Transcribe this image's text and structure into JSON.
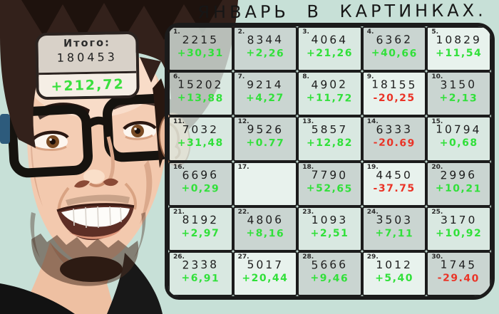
{
  "title": "ЯНВАРЬ В КАРТИНКАХ.",
  "total_box": {
    "label": "Итого:",
    "total": "180453",
    "change": "+212,72"
  },
  "colors": {
    "background": "#c7e0d7",
    "grid_border": "#1b1b1b",
    "positive": "#31e03a",
    "negative": "#ea3326",
    "cell_light": "#deeae4",
    "cell_gray": "#cbd3cf",
    "cell_white": "#edf5f0"
  },
  "chart_data": {
    "type": "table",
    "title": "ЯНВАРЬ В КАРТИНКАХ.",
    "columns": [
      "day",
      "value",
      "change"
    ],
    "total": {
      "label": "Итого:",
      "value": 180453,
      "change": "+212,72"
    },
    "days": [
      {
        "day": 1,
        "value": "2215",
        "change": "+30,31",
        "trend": "up",
        "shade": "light"
      },
      {
        "day": 2,
        "value": "8344",
        "change": "+2,26",
        "trend": "up",
        "shade": "gray"
      },
      {
        "day": 3,
        "value": "4064",
        "change": "+21,26",
        "trend": "up",
        "shade": "light"
      },
      {
        "day": 4,
        "value": "6362",
        "change": "+40,66",
        "trend": "up",
        "shade": "gray"
      },
      {
        "day": 5,
        "value": "10829",
        "change": "+11,54",
        "trend": "up",
        "shade": "white"
      },
      {
        "day": 6,
        "value": "15202",
        "change": "+13,88",
        "trend": "up",
        "shade": "light"
      },
      {
        "day": 7,
        "value": "9214",
        "change": "+4,27",
        "trend": "up",
        "shade": "gray"
      },
      {
        "day": 8,
        "value": "4902",
        "change": "+11,72",
        "trend": "up",
        "shade": "light"
      },
      {
        "day": 9,
        "value": "18155",
        "change": "-20,25",
        "trend": "down",
        "shade": "white"
      },
      {
        "day": 10,
        "value": "3150",
        "change": "+2,13",
        "trend": "up",
        "shade": "gray"
      },
      {
        "day": 11,
        "value": "7032",
        "change": "+31,48",
        "trend": "up",
        "shade": "light"
      },
      {
        "day": 12,
        "value": "9526",
        "change": "+0.77",
        "trend": "up",
        "shade": "gray"
      },
      {
        "day": 13,
        "value": "5857",
        "change": "+12,82",
        "trend": "up",
        "shade": "light"
      },
      {
        "day": 14,
        "value": "6333",
        "change": "-20.69",
        "trend": "down",
        "shade": "gray"
      },
      {
        "day": 15,
        "value": "10794",
        "change": "+0,68",
        "trend": "up",
        "shade": "light"
      },
      {
        "day": 16,
        "value": "6696",
        "change": "+0,29",
        "trend": "up",
        "shade": "gray"
      },
      {
        "day": 17,
        "value": "",
        "change": "",
        "trend": "none",
        "shade": "white"
      },
      {
        "day": 18,
        "value": "7790",
        "change": "+52,65",
        "trend": "up",
        "shade": "gray"
      },
      {
        "day": 19,
        "value": "4450",
        "change": "-37.75",
        "trend": "down",
        "shade": "white"
      },
      {
        "day": 20,
        "value": "2996",
        "change": "+10,21",
        "trend": "up",
        "shade": "gray"
      },
      {
        "day": 21,
        "value": "8192",
        "change": "+2,97",
        "trend": "up",
        "shade": "light"
      },
      {
        "day": 22,
        "value": "4806",
        "change": "+8,16",
        "trend": "up",
        "shade": "gray"
      },
      {
        "day": 23,
        "value": "1093",
        "change": "+2,51",
        "trend": "up",
        "shade": "light"
      },
      {
        "day": 24,
        "value": "3503",
        "change": "+7,11",
        "trend": "up",
        "shade": "gray"
      },
      {
        "day": 25,
        "value": "3170",
        "change": "+10,92",
        "trend": "up",
        "shade": "light"
      },
      {
        "day": 26,
        "value": "2338",
        "change": "+6,91",
        "trend": "up",
        "shade": "light"
      },
      {
        "day": 27,
        "value": "5017",
        "change": "+20,44",
        "trend": "up",
        "shade": "white"
      },
      {
        "day": 28,
        "value": "5666",
        "change": "+9,46",
        "trend": "up",
        "shade": "gray"
      },
      {
        "day": 29,
        "value": "1012",
        "change": "+5,40",
        "trend": "up",
        "shade": "white"
      },
      {
        "day": 30,
        "value": "1745",
        "change": "-29.40",
        "trend": "down",
        "shade": "gray"
      }
    ]
  }
}
